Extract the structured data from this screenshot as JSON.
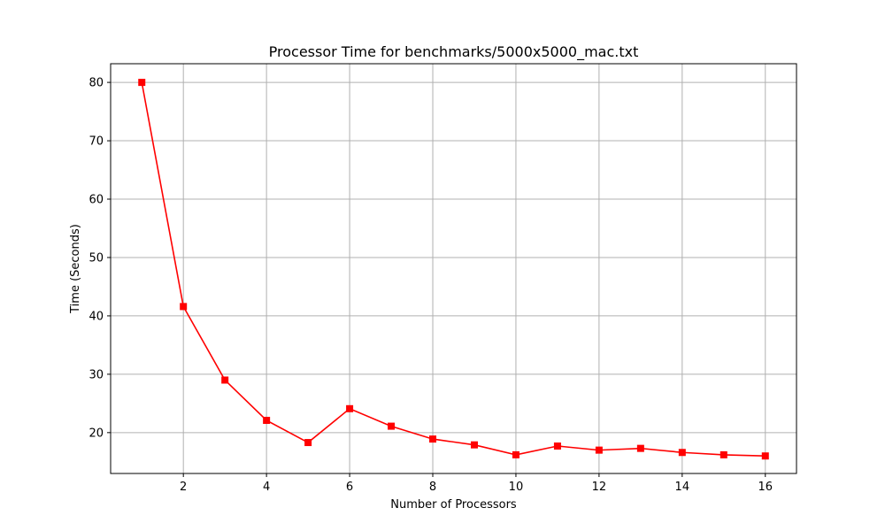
{
  "chart_data": {
    "type": "line",
    "title": "Processor Time for benchmarks/5000x5000_mac.txt",
    "xlabel": "Number of Processors",
    "ylabel": "Time (Seconds)",
    "x": [
      1,
      2,
      3,
      4,
      5,
      6,
      7,
      8,
      9,
      10,
      11,
      12,
      13,
      14,
      15,
      16
    ],
    "series": [
      {
        "values": [
          80.0,
          41.6,
          29.0,
          22.1,
          18.3,
          24.1,
          21.1,
          18.9,
          17.9,
          16.2,
          17.7,
          17.0,
          17.3,
          16.6,
          16.2,
          16.0
        ],
        "color": "#ff0000",
        "marker": "square"
      }
    ],
    "xlim": [
      0.25,
      16.75
    ],
    "ylim": [
      13.0,
      83.2
    ],
    "xticks": [
      2,
      4,
      6,
      8,
      10,
      12,
      14,
      16
    ],
    "xtick_labels": [
      "2",
      "4",
      "6",
      "8",
      "10",
      "12",
      "14",
      "16"
    ],
    "yticks": [
      20,
      30,
      40,
      50,
      60,
      70,
      80
    ],
    "ytick_labels": [
      "20",
      "30",
      "40",
      "50",
      "60",
      "70",
      "80"
    ],
    "grid": true
  }
}
